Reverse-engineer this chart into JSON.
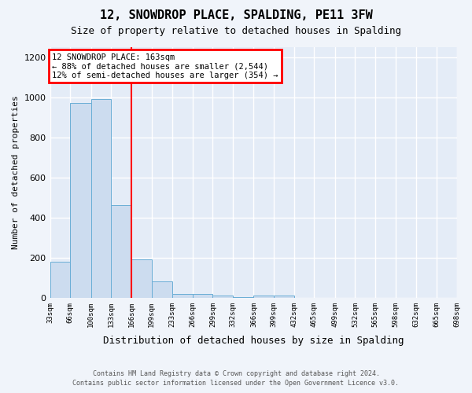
{
  "title": "12, SNOWDROP PLACE, SPALDING, PE11 3FW",
  "subtitle": "Size of property relative to detached houses in Spalding",
  "xlabel": "Distribution of detached houses by size in Spalding",
  "ylabel": "Number of detached properties",
  "bar_edges": [
    33,
    66,
    100,
    133,
    166,
    199,
    233,
    266,
    299,
    332,
    366,
    399,
    432,
    465,
    499,
    532,
    565,
    598,
    632,
    665,
    698
  ],
  "bar_heights": [
    180,
    970,
    990,
    460,
    190,
    80,
    20,
    20,
    10,
    5,
    10,
    10,
    0,
    0,
    0,
    0,
    0,
    0,
    0,
    0
  ],
  "bar_color": "#ccdcef",
  "bar_edge_color": "#6aaed6",
  "red_line_x": 166,
  "annotation_title": "12 SNOWDROP PLACE: 163sqm",
  "annotation_line1": "← 88% of detached houses are smaller (2,544)",
  "annotation_line2": "12% of semi-detached houses are larger (354) →",
  "footer1": "Contains HM Land Registry data © Crown copyright and database right 2024.",
  "footer2": "Contains public sector information licensed under the Open Government Licence v3.0.",
  "ylim": [
    0,
    1250
  ],
  "background_color": "#f0f4fa",
  "plot_bg_color": "#e4ecf7"
}
